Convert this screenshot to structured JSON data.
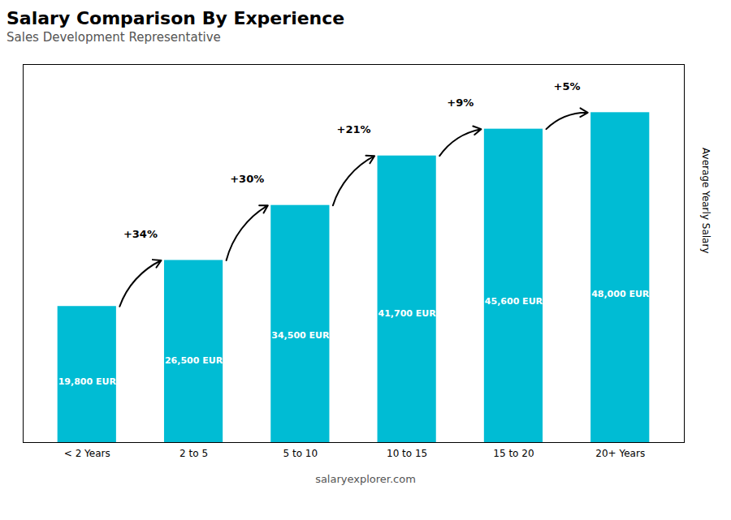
{
  "chart_data": {
    "type": "bar",
    "title": "Salary Comparison By Experience",
    "subtitle": "Sales Development Representative",
    "categories": [
      "< 2 Years",
      "2 to 5",
      "5 to 10",
      "10 to 15",
      "15 to 20",
      "20+ Years"
    ],
    "values": [
      19800,
      26500,
      34500,
      41700,
      45600,
      48000
    ],
    "value_labels": [
      "19,800 EUR",
      "26,500 EUR",
      "34,500 EUR",
      "41,700 EUR",
      "45,600 EUR",
      "48,000 EUR"
    ],
    "data_labels": true,
    "color": "#00bcd4",
    "ylim": [
      0,
      55000
    ],
    "tick_labels": "x",
    "ylabel": "Average Yearly Salary",
    "annotations": [
      "+34%",
      "+30%",
      "+21%",
      "+9%",
      "+5%"
    ],
    "caption": "salaryexplorer.com",
    "grid": false
  }
}
